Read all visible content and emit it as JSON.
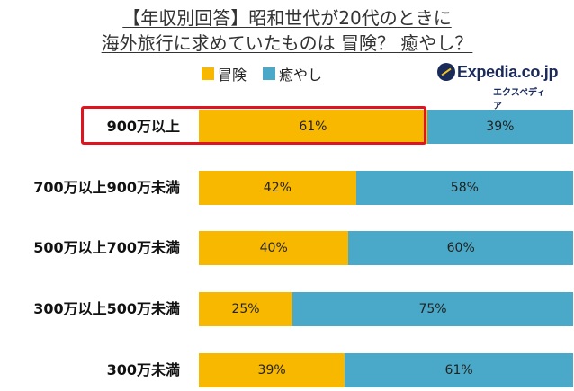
{
  "title_line1": "【年収別回答】昭和世代が20代のときに",
  "title_line2": "海外旅行に求めていたものは 冒険？ 癒やし？",
  "logo": {
    "wordmark": "Expedia.co.jp",
    "sub": "エクスペディア",
    "icon": "expedia-globe-icon"
  },
  "colors": {
    "adventure": "#f8b800",
    "healing": "#4aa9c8",
    "highlight": "#e0141e"
  },
  "chart_data": {
    "type": "bar",
    "orientation": "horizontal",
    "stacked": true,
    "percent": true,
    "categories": [
      "900万以上",
      "700万以上900万未満",
      "500万以上700万未満",
      "300万以上500万未満",
      "300万未満"
    ],
    "series": [
      {
        "name": "冒険",
        "values": [
          61,
          42,
          40,
          25,
          39
        ]
      },
      {
        "name": "癒やし",
        "values": [
          39,
          58,
          60,
          75,
          61
        ]
      }
    ],
    "value_labels": [
      [
        "61%",
        "42%",
        "40%",
        "25%",
        "39%"
      ],
      [
        "39%",
        "58%",
        "60%",
        "75%",
        "61%"
      ]
    ],
    "highlighted_category": "900万以上",
    "legend_position": "top",
    "xlim": [
      0,
      100
    ],
    "grid": false
  }
}
